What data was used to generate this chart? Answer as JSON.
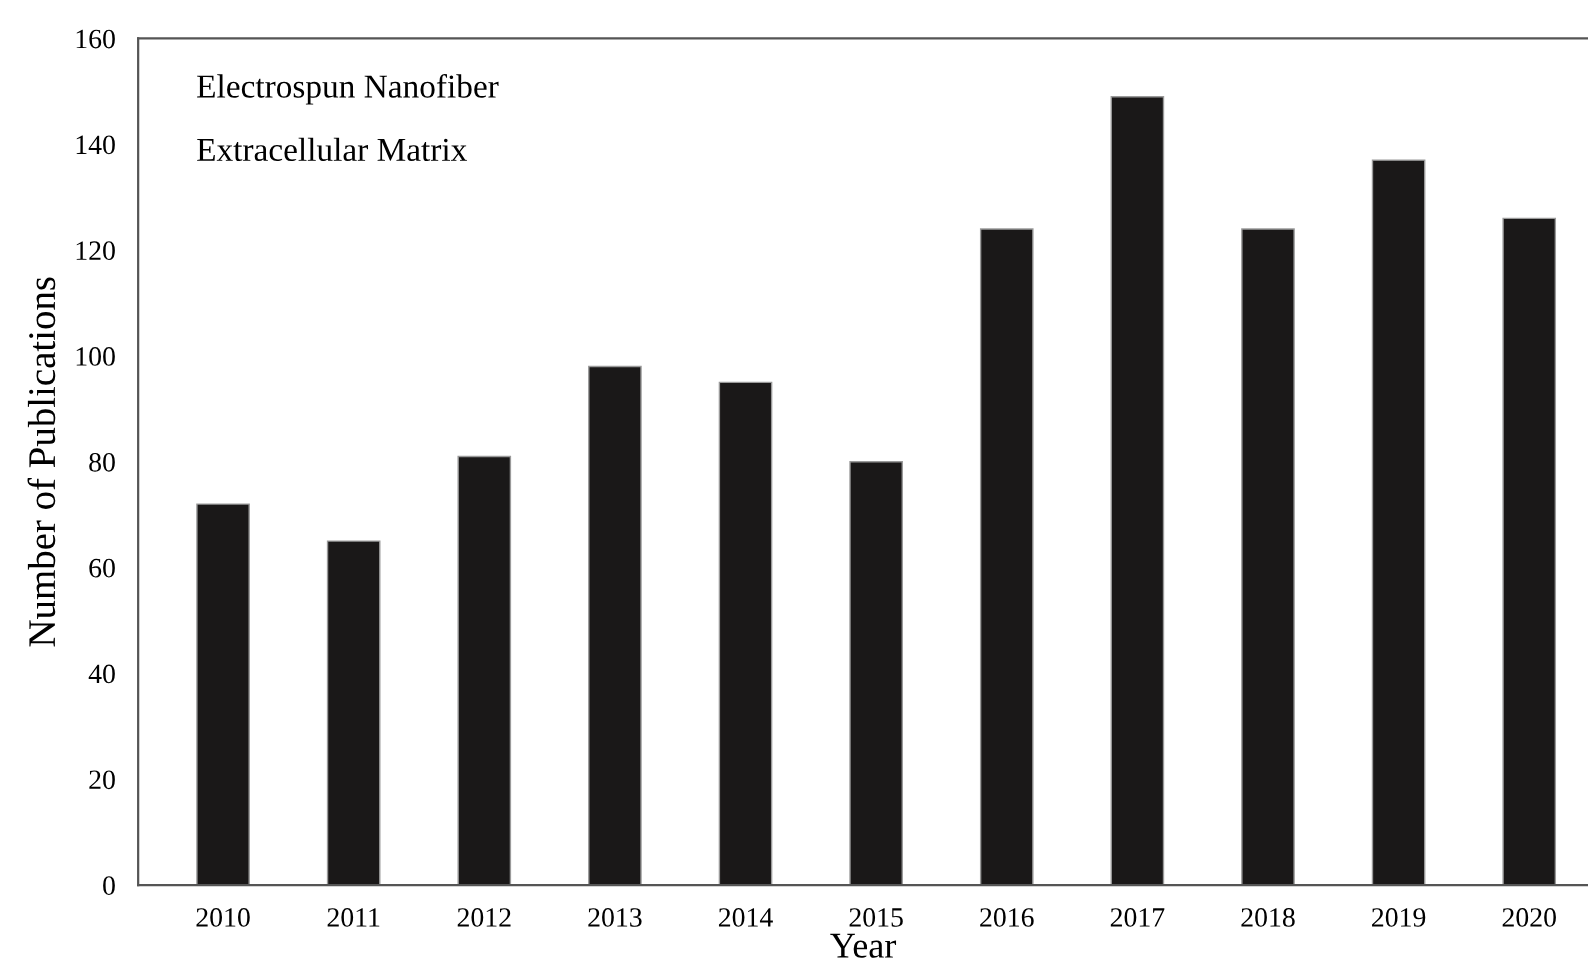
{
  "chart_data": {
    "type": "bar",
    "xlabel": "Year",
    "ylabel": "Number of Publications",
    "annotations": [
      "Electrospun Nanofiber",
      "Extracellular Matrix"
    ],
    "categories": [
      "2010",
      "2011",
      "2012",
      "2013",
      "2014",
      "2015",
      "2016",
      "2017",
      "2018",
      "2019",
      "2020"
    ],
    "values": [
      72,
      65,
      81,
      98,
      95,
      80,
      124,
      149,
      124,
      137,
      126
    ],
    "color": "#1a1818",
    "ylim": [
      0,
      160
    ],
    "yticks": [
      0,
      20,
      40,
      60,
      80,
      100,
      120,
      140,
      160
    ],
    "grid": false,
    "legend": false
  }
}
